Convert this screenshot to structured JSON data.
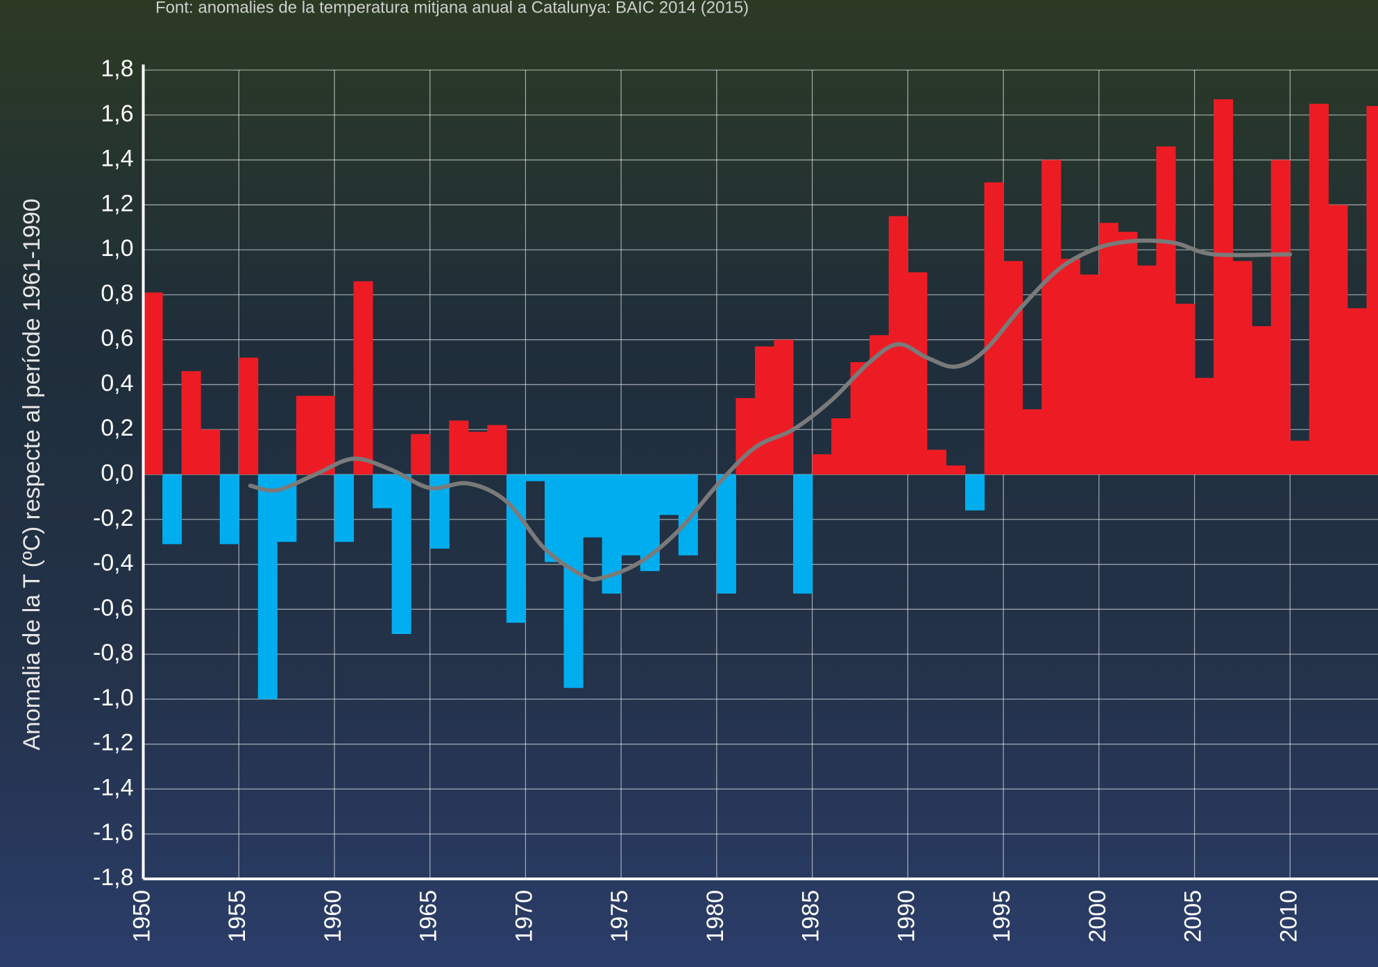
{
  "chart_data": {
    "type": "bar",
    "title": "Font: anomalies de la temperatura mitjana anual a Catalunya: BAIC 2014 (2015)",
    "y_label": "Anomalia de la T (ºC) respecte al període 1961-1990",
    "x": [
      1950,
      1951,
      1952,
      1953,
      1954,
      1955,
      1956,
      1957,
      1958,
      1959,
      1960,
      1961,
      1962,
      1963,
      1964,
      1965,
      1966,
      1967,
      1968,
      1969,
      1970,
      1971,
      1972,
      1973,
      1974,
      1975,
      1976,
      1977,
      1978,
      1979,
      1980,
      1981,
      1982,
      1983,
      1984,
      1985,
      1986,
      1987,
      1988,
      1989,
      1990,
      1991,
      1992,
      1993,
      1994,
      1995,
      1996,
      1997,
      1998,
      1999,
      2000,
      2001,
      2002,
      2003,
      2004,
      2005,
      2006,
      2007,
      2008,
      2009,
      2010,
      2011,
      2012,
      2013,
      2014
    ],
    "values": [
      0.81,
      -0.31,
      0.46,
      0.2,
      -0.31,
      0.52,
      -1.0,
      -0.3,
      0.35,
      0.35,
      -0.3,
      0.86,
      -0.15,
      -0.71,
      0.18,
      -0.33,
      0.24,
      0.19,
      0.22,
      -0.66,
      -0.03,
      -0.39,
      -0.95,
      -0.28,
      -0.53,
      -0.36,
      -0.43,
      -0.18,
      -0.36,
      0,
      -0.53,
      0.34,
      0.57,
      0.6,
      -0.53,
      0.09,
      0.25,
      0.5,
      0.62,
      1.15,
      0.9,
      0.11,
      0.04,
      -0.16,
      1.3,
      0.95,
      0.29,
      1.4,
      0.96,
      0.89,
      1.12,
      1.08,
      0.93,
      1.46,
      0.76,
      0.43,
      1.67,
      0.95,
      0.66,
      1.4,
      0.15,
      1.65,
      1.2,
      0.74,
      1.64
    ],
    "positive_color": "#ed1c24",
    "negative_color": "#00aeef",
    "trend": {
      "color": "#7a7a7a",
      "x": [
        1955.6,
        1957,
        1959,
        1961,
        1963,
        1965,
        1967,
        1969,
        1971,
        1973,
        1974,
        1976,
        1978,
        1980,
        1982,
        1984,
        1986,
        1988,
        1989.5,
        1991,
        1992.5,
        1994,
        1996,
        1998,
        2000,
        2002,
        2004,
        2006,
        2010
      ],
      "values": [
        -0.05,
        -0.07,
        0.0,
        0.07,
        0.02,
        -0.06,
        -0.04,
        -0.12,
        -0.33,
        -0.45,
        -0.46,
        -0.39,
        -0.25,
        -0.05,
        0.12,
        0.2,
        0.33,
        0.5,
        0.58,
        0.52,
        0.48,
        0.55,
        0.75,
        0.92,
        1.01,
        1.04,
        1.03,
        0.98,
        0.98
      ]
    },
    "xlim": [
      1950,
      2014.6
    ],
    "xticks": [
      1950,
      1955,
      1960,
      1965,
      1970,
      1975,
      1980,
      1985,
      1990,
      1995,
      2000,
      2005,
      2010
    ],
    "ylim": [
      -1.8,
      1.8
    ],
    "yticks": [
      {
        "value": -1.8,
        "label": "-1,8"
      },
      {
        "value": -1.6,
        "label": "-1,6"
      },
      {
        "value": -1.4,
        "label": "-1,4"
      },
      {
        "value": -1.2,
        "label": "-1,2"
      },
      {
        "value": -1.0,
        "label": "-1,0"
      },
      {
        "value": -0.8,
        "label": "-0,8"
      },
      {
        "value": -0.6,
        "label": "-0,6"
      },
      {
        "value": -0.4,
        "label": "-0,4"
      },
      {
        "value": -0.2,
        "label": "-0,2"
      },
      {
        "value": 0,
        "label": "0,0"
      },
      {
        "value": 0.2,
        "label": "0,2"
      },
      {
        "value": 0.4,
        "label": "0,4"
      },
      {
        "value": 0.6,
        "label": "0,6"
      },
      {
        "value": 0.8,
        "label": "0,8"
      },
      {
        "value": 1.0,
        "label": "1,0"
      },
      {
        "value": 1.2,
        "label": "1,2"
      },
      {
        "value": 1.4,
        "label": "1,4"
      },
      {
        "value": 1.6,
        "label": "1,6"
      },
      {
        "value": 1.8,
        "label": "1,8"
      }
    ],
    "grid": true
  }
}
